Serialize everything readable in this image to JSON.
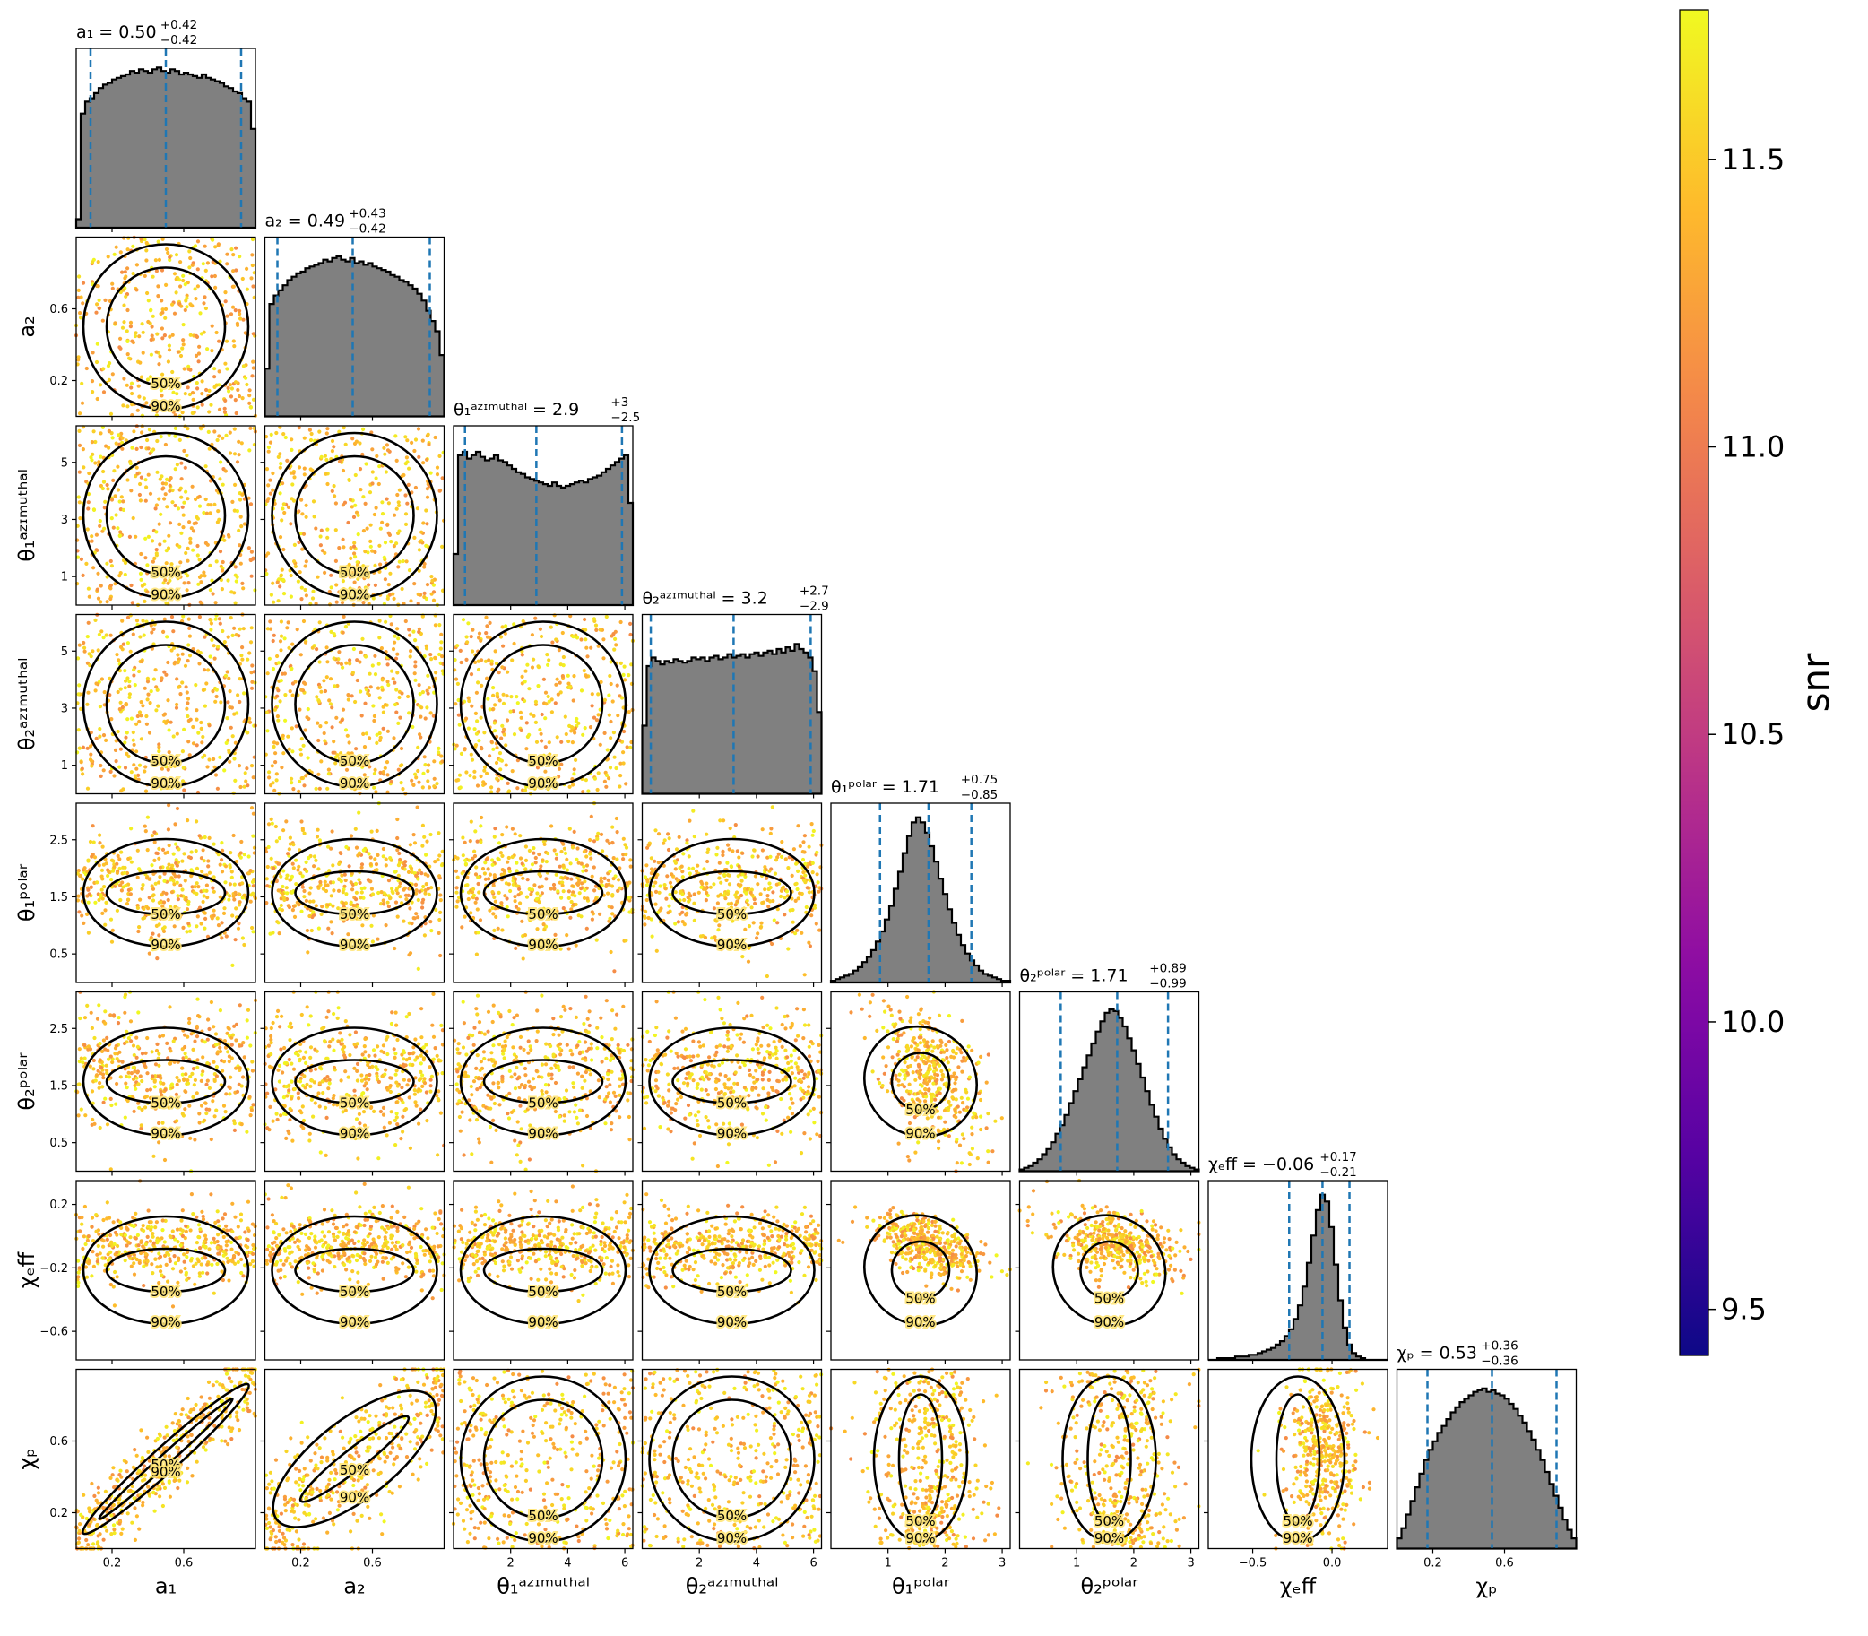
{
  "figure": {
    "colorbar": {
      "label": "snr",
      "colormap": "plasma",
      "range": [
        9.42,
        11.76
      ],
      "ticks": [
        "9.5",
        "10.0",
        "10.5",
        "11.0",
        "11.5"
      ]
    },
    "quantile_color": "#1f77b4",
    "hist_fill": "#808080"
  },
  "chart_data": {
    "type": "scatter",
    "subtype": "corner-plot",
    "contour_levels": [
      "50%",
      "90%"
    ],
    "parameters": [
      {
        "key": "a1",
        "label": "a₁",
        "title_main": "a₁ = 0.50",
        "title_up": "+0.42",
        "title_lo": "−0.42",
        "median": 0.5,
        "lo": 0.08,
        "hi": 0.92,
        "range": [
          0.0,
          1.0
        ],
        "ticks": [
          0.2,
          0.6
        ],
        "tick_labels": [
          "0.2",
          "0.6"
        ],
        "hist": [
          0.05,
          0.67,
          0.74,
          0.76,
          0.79,
          0.82,
          0.84,
          0.85,
          0.87,
          0.88,
          0.89,
          0.9,
          0.92,
          0.91,
          0.93,
          0.92,
          0.91,
          0.93,
          0.94,
          0.92,
          0.91,
          0.93,
          0.92,
          0.9,
          0.91,
          0.9,
          0.89,
          0.88,
          0.9,
          0.88,
          0.87,
          0.86,
          0.85,
          0.83,
          0.82,
          0.8,
          0.79,
          0.76,
          0.74,
          0.58
        ]
      },
      {
        "key": "a2",
        "label": "a₂",
        "title_main": "a₂ = 0.49",
        "title_up": "+0.43",
        "title_lo": "−0.42",
        "median": 0.49,
        "lo": 0.07,
        "hi": 0.92,
        "range": [
          0.0,
          1.0
        ],
        "ticks": [
          0.2,
          0.6
        ],
        "tick_labels": [
          "0.2",
          "0.6"
        ],
        "hist": [
          0.28,
          0.66,
          0.71,
          0.74,
          0.77,
          0.8,
          0.82,
          0.84,
          0.85,
          0.87,
          0.88,
          0.89,
          0.9,
          0.92,
          0.91,
          0.93,
          0.94,
          0.92,
          0.91,
          0.93,
          0.9,
          0.91,
          0.89,
          0.9,
          0.88,
          0.87,
          0.86,
          0.85,
          0.83,
          0.82,
          0.8,
          0.79,
          0.77,
          0.75,
          0.72,
          0.68,
          0.62,
          0.56,
          0.5,
          0.36
        ]
      },
      {
        "key": "theta1_az",
        "label": "θ₁ᵃᶻᶦᵐᵘᵗʰᵃˡ",
        "title_main": "θ₁ᵃᶻᶦᵐᵘᵗʰᵃˡ = 2.9",
        "title_up": "+3",
        "title_lo": "−2.5",
        "median": 2.9,
        "lo": 0.4,
        "hi": 5.9,
        "range": [
          0.0,
          6.28
        ],
        "ticks": [
          2,
          4,
          6
        ],
        "tick_labels": [
          "2",
          "4",
          "6"
        ],
        "hist": [
          0.3,
          0.88,
          0.9,
          0.86,
          0.88,
          0.9,
          0.87,
          0.85,
          0.86,
          0.88,
          0.85,
          0.84,
          0.82,
          0.8,
          0.78,
          0.77,
          0.75,
          0.74,
          0.73,
          0.72,
          0.71,
          0.7,
          0.72,
          0.7,
          0.69,
          0.7,
          0.71,
          0.72,
          0.73,
          0.72,
          0.74,
          0.75,
          0.76,
          0.78,
          0.8,
          0.82,
          0.84,
          0.86,
          0.88,
          0.6
        ]
      },
      {
        "key": "theta2_az",
        "label": "θ₂ᵃᶻᶦᵐᵘᵗʰᵃˡ",
        "title_main": "θ₂ᵃᶻᶦᵐᵘᵗʰᵃˡ = 3.2",
        "title_up": "+2.7",
        "title_lo": "−2.9",
        "median": 3.2,
        "lo": 0.3,
        "hi": 5.9,
        "range": [
          0.0,
          6.28
        ],
        "ticks": [
          2,
          4,
          6
        ],
        "tick_labels": [
          "2",
          "4",
          "6"
        ],
        "hist": [
          0.4,
          0.75,
          0.8,
          0.78,
          0.76,
          0.78,
          0.77,
          0.79,
          0.78,
          0.77,
          0.78,
          0.8,
          0.79,
          0.8,
          0.78,
          0.8,
          0.81,
          0.79,
          0.8,
          0.82,
          0.8,
          0.81,
          0.82,
          0.8,
          0.82,
          0.83,
          0.81,
          0.83,
          0.84,
          0.82,
          0.85,
          0.83,
          0.86,
          0.84,
          0.88,
          0.85,
          0.83,
          0.8,
          0.72,
          0.48
        ]
      },
      {
        "key": "theta1_pol",
        "label": "θ₁ᵖᵒˡᵃʳ",
        "title_main": "θ₁ᵖᵒˡᵃʳ = 1.71",
        "title_up": "+0.75",
        "title_lo": "−0.85",
        "median": 1.71,
        "lo": 0.86,
        "hi": 2.46,
        "range": [
          0.0,
          3.14
        ],
        "ticks": [
          1,
          2,
          3
        ],
        "tick_labels": [
          "1",
          "2",
          "3"
        ],
        "hist": [
          0.01,
          0.02,
          0.03,
          0.04,
          0.05,
          0.07,
          0.09,
          0.12,
          0.15,
          0.19,
          0.24,
          0.3,
          0.37,
          0.45,
          0.55,
          0.65,
          0.76,
          0.86,
          0.94,
          0.97,
          0.94,
          0.88,
          0.8,
          0.71,
          0.61,
          0.52,
          0.43,
          0.35,
          0.28,
          0.22,
          0.17,
          0.13,
          0.1,
          0.07,
          0.05,
          0.04,
          0.03,
          0.02,
          0.01,
          0.01
        ]
      },
      {
        "key": "theta2_pol",
        "label": "θ₂ᵖᵒˡᵃʳ",
        "title_main": "θ₂ᵖᵒˡᵃʳ = 1.71",
        "title_up": "+0.89",
        "title_lo": "−0.99",
        "median": 1.71,
        "lo": 0.72,
        "hi": 2.6,
        "range": [
          0.0,
          3.14
        ],
        "ticks": [
          1,
          2,
          3
        ],
        "tick_labels": [
          "1",
          "2",
          "3"
        ],
        "hist": [
          0.01,
          0.02,
          0.03,
          0.05,
          0.07,
          0.1,
          0.13,
          0.17,
          0.22,
          0.27,
          0.33,
          0.4,
          0.47,
          0.54,
          0.61,
          0.68,
          0.75,
          0.82,
          0.88,
          0.93,
          0.95,
          0.94,
          0.9,
          0.85,
          0.78,
          0.71,
          0.63,
          0.55,
          0.47,
          0.39,
          0.32,
          0.25,
          0.19,
          0.14,
          0.1,
          0.07,
          0.05,
          0.03,
          0.02,
          0.01
        ]
      },
      {
        "key": "chi_eff",
        "label": "χₑff",
        "title_main": "χₑff = −0.06",
        "title_up": "+0.17",
        "title_lo": "−0.21",
        "median": -0.06,
        "lo": -0.27,
        "hi": 0.11,
        "range": [
          -0.78,
          0.35
        ],
        "ticks": [
          -0.5,
          0.0
        ],
        "tick_labels": [
          "−0.5",
          "0.0"
        ],
        "hist": [
          0.0,
          0.0,
          0.01,
          0.01,
          0.01,
          0.01,
          0.02,
          0.02,
          0.02,
          0.03,
          0.03,
          0.04,
          0.05,
          0.06,
          0.07,
          0.09,
          0.11,
          0.14,
          0.18,
          0.24,
          0.32,
          0.43,
          0.57,
          0.73,
          0.88,
          0.97,
          0.93,
          0.78,
          0.56,
          0.35,
          0.19,
          0.09,
          0.04,
          0.02,
          0.01,
          0.0,
          0.0,
          0.0,
          0.0,
          0.0
        ]
      },
      {
        "key": "chi_p",
        "label": "χₚ",
        "title_main": "χₚ = 0.53",
        "title_up": "+0.36",
        "title_lo": "−0.36",
        "median": 0.53,
        "lo": 0.17,
        "hi": 0.89,
        "range": [
          0.0,
          1.0
        ],
        "ticks": [
          0.2,
          0.6
        ],
        "tick_labels": [
          "0.2",
          "0.6"
        ],
        "hist": [
          0.06,
          0.12,
          0.2,
          0.28,
          0.36,
          0.44,
          0.52,
          0.58,
          0.63,
          0.68,
          0.72,
          0.76,
          0.8,
          0.83,
          0.86,
          0.88,
          0.9,
          0.92,
          0.93,
          0.94,
          0.92,
          0.93,
          0.91,
          0.9,
          0.88,
          0.85,
          0.82,
          0.78,
          0.74,
          0.69,
          0.64,
          0.58,
          0.52,
          0.45,
          0.38,
          0.31,
          0.24,
          0.17,
          0.11,
          0.06
        ]
      }
    ],
    "row_ticks": [
      null,
      {
        "values": [
          0.2,
          0.6
        ],
        "labels": [
          "0.2",
          "0.6"
        ]
      },
      {
        "values": [
          1,
          3,
          5
        ],
        "labels": [
          "1",
          "3",
          "5"
        ]
      },
      {
        "values": [
          1,
          3,
          5
        ],
        "labels": [
          "1",
          "3",
          "5"
        ]
      },
      {
        "values": [
          0.5,
          1.5,
          2.5
        ],
        "labels": [
          "0.5",
          "1.5",
          "2.5"
        ]
      },
      {
        "values": [
          0.5,
          1.5,
          2.5
        ],
        "labels": [
          "0.5",
          "1.5",
          "2.5"
        ]
      },
      {
        "values": [
          -0.6,
          -0.2,
          0.2
        ],
        "labels": [
          "−0.6",
          "−0.2",
          "0.2"
        ]
      },
      {
        "values": [
          0.2,
          0.6
        ],
        "labels": [
          "0.2",
          "0.6"
        ]
      }
    ]
  }
}
